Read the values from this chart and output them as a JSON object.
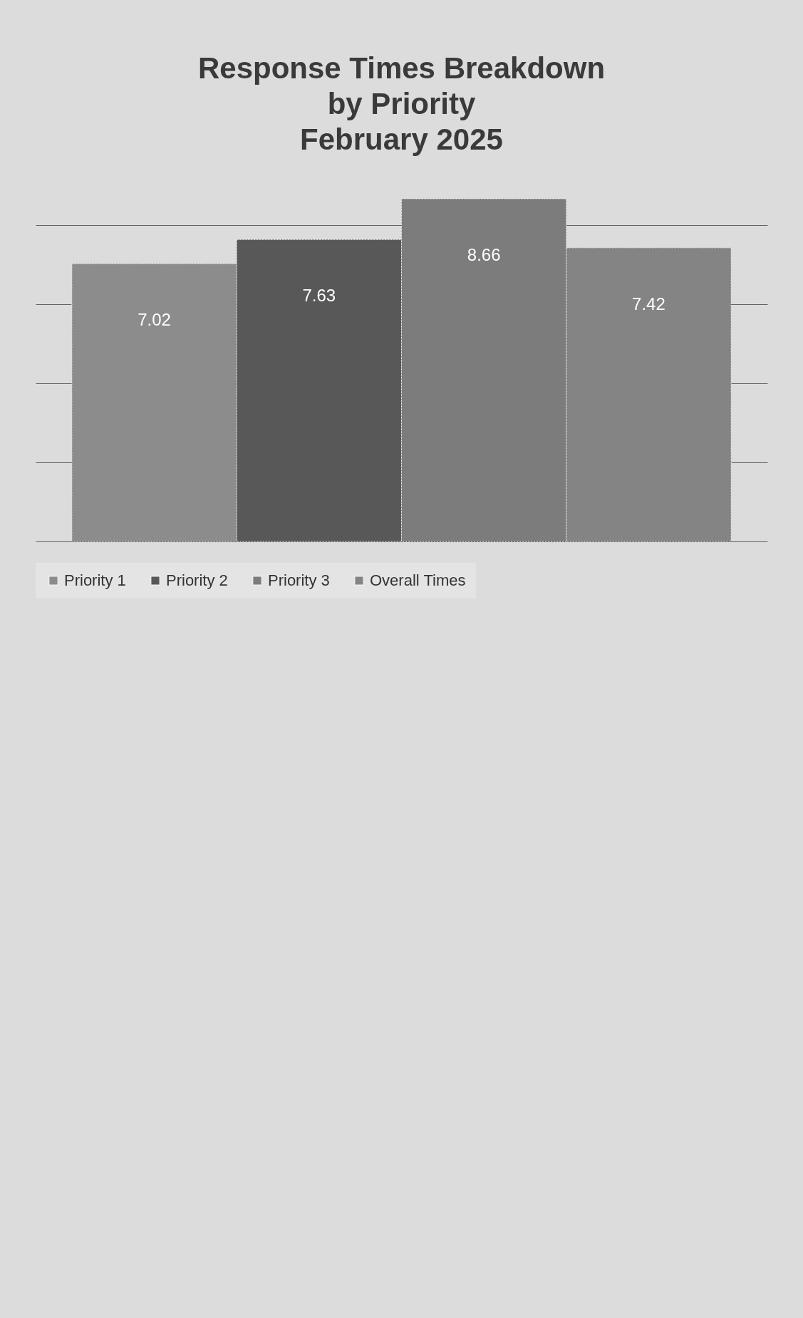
{
  "chart_data": {
    "type": "bar",
    "title": "Response Times Breakdown\nby Priority\nFebruary 2025",
    "categories": [
      null
    ],
    "series": [
      {
        "name": "Priority 1",
        "color": "#8c8c8c",
        "values": [
          7.02
        ]
      },
      {
        "name": "Priority 2",
        "color": "#585858",
        "values": [
          7.63
        ]
      },
      {
        "name": "Priority 3",
        "color": "#7c7c7c",
        "values": [
          8.66
        ]
      },
      {
        "name": "Overall Times",
        "color": "#848484",
        "values": [
          7.42
        ]
      }
    ],
    "yticks": [
      0,
      2,
      4,
      6,
      8
    ],
    "grid": "y",
    "tick_labels": false,
    "legend": "bottom",
    "data_labels": true
  }
}
